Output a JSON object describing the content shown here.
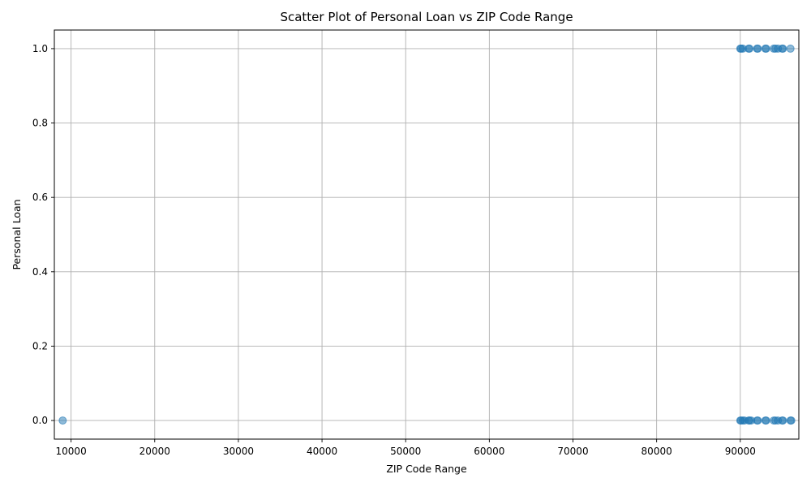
{
  "chart_data": {
    "type": "scatter",
    "title": "Scatter Plot of Personal Loan vs ZIP Code Range",
    "xlabel": "ZIP Code Range",
    "ylabel": "Personal Loan",
    "xlim": [
      8000,
      97000
    ],
    "ylim": [
      -0.05,
      1.05
    ],
    "xticks": [
      10000,
      20000,
      30000,
      40000,
      50000,
      60000,
      70000,
      80000,
      90000
    ],
    "xtick_labels": [
      "10000",
      "20000",
      "30000",
      "40000",
      "50000",
      "60000",
      "70000",
      "80000",
      "90000"
    ],
    "yticks": [
      0.0,
      0.2,
      0.4,
      0.6,
      0.8,
      1.0
    ],
    "ytick_labels": [
      "0.0",
      "0.2",
      "0.4",
      "0.6",
      "0.8",
      "1.0"
    ],
    "grid": true,
    "marker_color": "#1f77b4",
    "marker_alpha": 0.5,
    "series": [
      {
        "points": [
          {
            "x": 9000,
            "y": 0
          },
          {
            "x": 90000,
            "y": 0
          },
          {
            "x": 90100,
            "y": 0
          },
          {
            "x": 90300,
            "y": 0
          },
          {
            "x": 90500,
            "y": 0
          },
          {
            "x": 91000,
            "y": 0
          },
          {
            "x": 91100,
            "y": 0
          },
          {
            "x": 91300,
            "y": 0
          },
          {
            "x": 92000,
            "y": 0
          },
          {
            "x": 92100,
            "y": 0
          },
          {
            "x": 93000,
            "y": 0
          },
          {
            "x": 93100,
            "y": 0
          },
          {
            "x": 94000,
            "y": 0
          },
          {
            "x": 94200,
            "y": 0
          },
          {
            "x": 94500,
            "y": 0
          },
          {
            "x": 95000,
            "y": 0
          },
          {
            "x": 95100,
            "y": 0
          },
          {
            "x": 96000,
            "y": 0
          },
          {
            "x": 96100,
            "y": 0
          },
          {
            "x": 90000,
            "y": 1
          },
          {
            "x": 90100,
            "y": 1
          },
          {
            "x": 90300,
            "y": 1
          },
          {
            "x": 91000,
            "y": 1
          },
          {
            "x": 91100,
            "y": 1
          },
          {
            "x": 92000,
            "y": 1
          },
          {
            "x": 92100,
            "y": 1
          },
          {
            "x": 93000,
            "y": 1
          },
          {
            "x": 93100,
            "y": 1
          },
          {
            "x": 94000,
            "y": 1
          },
          {
            "x": 94200,
            "y": 1
          },
          {
            "x": 94500,
            "y": 1
          },
          {
            "x": 95000,
            "y": 1
          },
          {
            "x": 95100,
            "y": 1
          },
          {
            "x": 96000,
            "y": 1
          }
        ]
      }
    ]
  }
}
